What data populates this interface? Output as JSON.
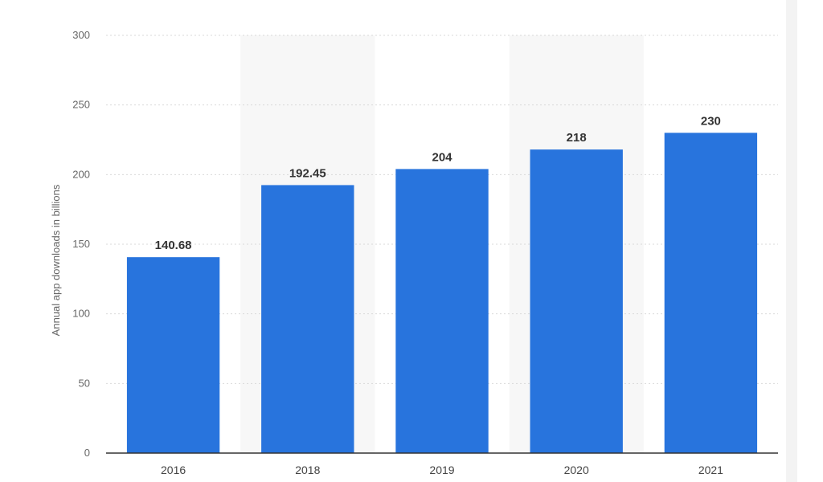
{
  "chart_data": {
    "type": "bar",
    "categories": [
      "2016",
      "2018",
      "2019",
      "2020",
      "2021"
    ],
    "values": [
      140.68,
      192.45,
      204,
      218,
      230
    ],
    "value_labels": [
      "140.68",
      "192.45",
      "204",
      "218",
      "230"
    ],
    "ylabel": "Annual app downloads in billions",
    "ylim": [
      0,
      300
    ],
    "yticks": [
      0,
      50,
      100,
      150,
      200,
      250,
      300
    ],
    "grid": true,
    "bar_color": "#2874dd",
    "band_color": "#f7f7f7",
    "shaded_categories": [
      "2018",
      "2020"
    ]
  }
}
